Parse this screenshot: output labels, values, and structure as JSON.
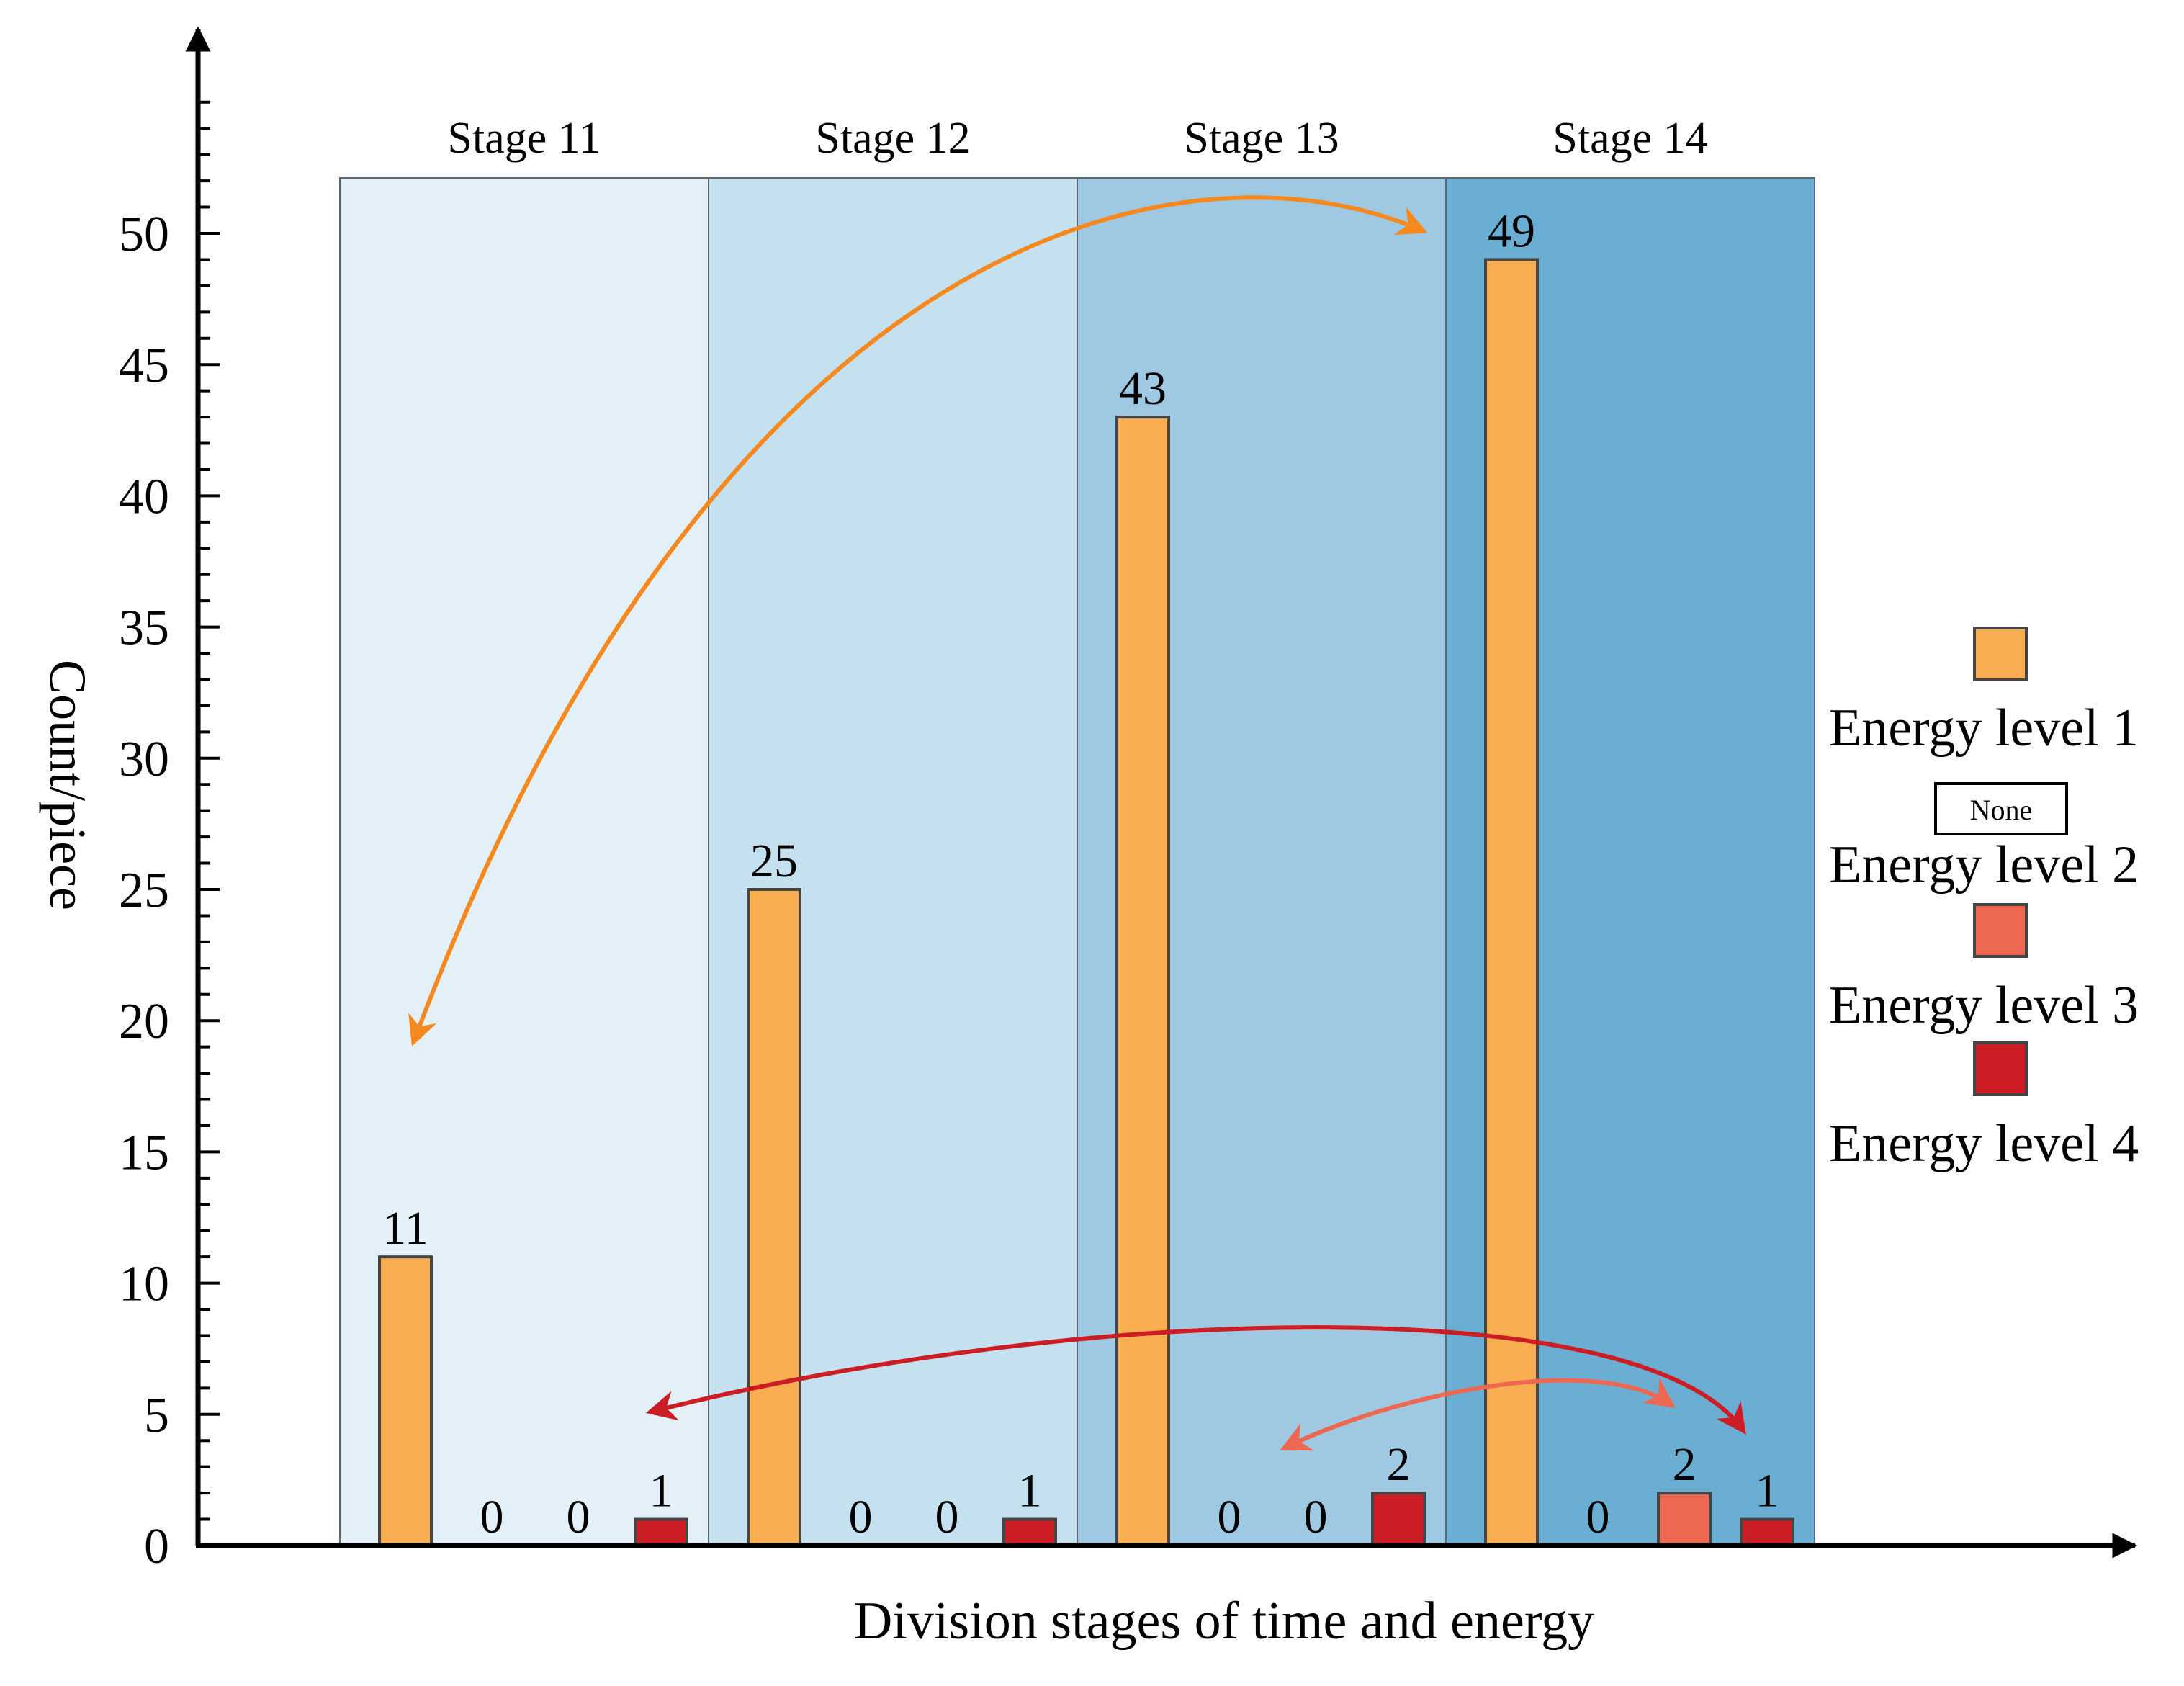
{
  "chart_data": {
    "type": "bar",
    "title": "",
    "xlabel": "Division stages of time and energy",
    "ylabel": "Count/piece",
    "ylim": [
      0,
      50
    ],
    "yticks": [
      0,
      5,
      10,
      15,
      20,
      25,
      30,
      35,
      40,
      45,
      50
    ],
    "grid": false,
    "legend_position": "right",
    "categories": [
      "Stage 11",
      "Stage 12",
      "Stage 13",
      "Stage 14"
    ],
    "category_colors": [
      "#e3f0f7",
      "#c5e1ef",
      "#9fc9e2",
      "#6aaed3"
    ],
    "series": [
      {
        "name": "Energy level 1",
        "color": "#f9ae51",
        "values": [
          11,
          25,
          43,
          49
        ]
      },
      {
        "name": "Energy level 2",
        "color": "none",
        "values": [
          0,
          0,
          0,
          0
        ]
      },
      {
        "name": "Energy level 3",
        "color": "#ee6851",
        "values": [
          0,
          0,
          0,
          2
        ]
      },
      {
        "name": "Energy level 4",
        "color": "#cc1c24",
        "values": [
          1,
          1,
          2,
          1
        ]
      }
    ],
    "legend_none_label": "None",
    "arrow_colors": {
      "level1": "#f5891f",
      "level3": "#ee6851",
      "level4": "#cc1c24"
    }
  }
}
